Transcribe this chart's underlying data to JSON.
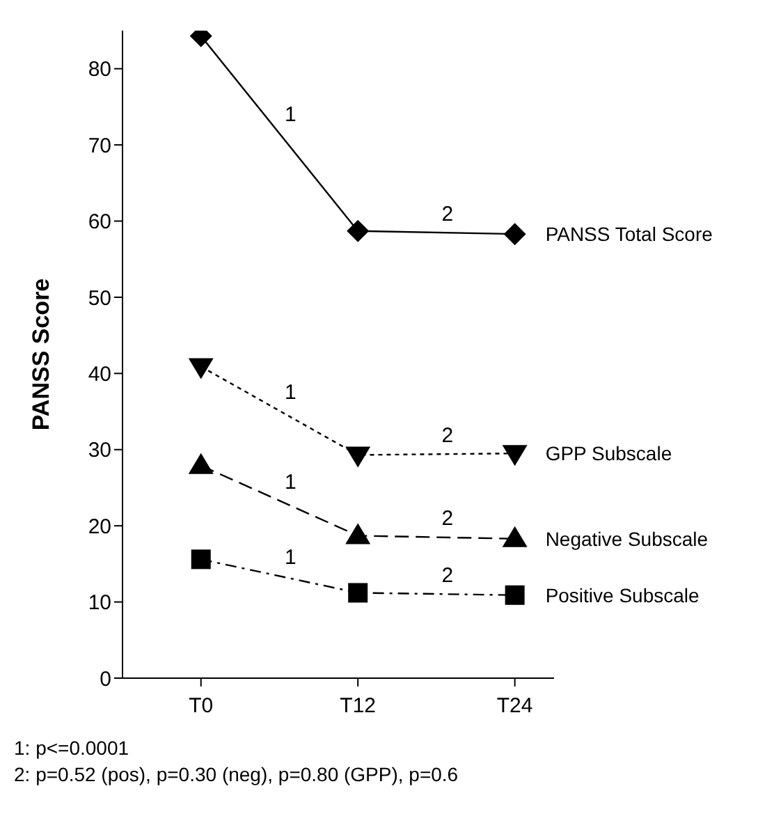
{
  "chart_data": {
    "type": "line",
    "ylabel": "PANSS Score",
    "categories": [
      "T0",
      "T12",
      "T24"
    ],
    "ylim": [
      0,
      85
    ],
    "yticks": [
      0,
      10,
      20,
      30,
      40,
      50,
      60,
      70,
      80
    ],
    "series": [
      {
        "name": "PANSS Total Score",
        "color": "#000000",
        "marker": "diamond",
        "line_style": "solid",
        "values": [
          84.3,
          58.7,
          58.3
        ]
      },
      {
        "name": "GPP Subscale",
        "color": "#000000",
        "marker": "triangle-down",
        "line_style": "dotted",
        "values": [
          40.9,
          29.3,
          29.5
        ]
      },
      {
        "name": "Negative Subscale",
        "color": "#000000",
        "marker": "triangle",
        "line_style": "dashed",
        "values": [
          27.9,
          18.7,
          18.3
        ]
      },
      {
        "name": "Positive Subscale",
        "color": "#000000",
        "marker": "square",
        "line_style": "dashdot",
        "values": [
          15.6,
          11.2,
          10.9
        ]
      }
    ],
    "annotations": [
      "1",
      "2",
      "1",
      "2",
      "1",
      "2",
      "1",
      "2",
      "1: p<=0.0001",
      "2: p=0.52 (pos), p=0.30 (neg), p=0.80 (GPP), p=0.6"
    ]
  }
}
